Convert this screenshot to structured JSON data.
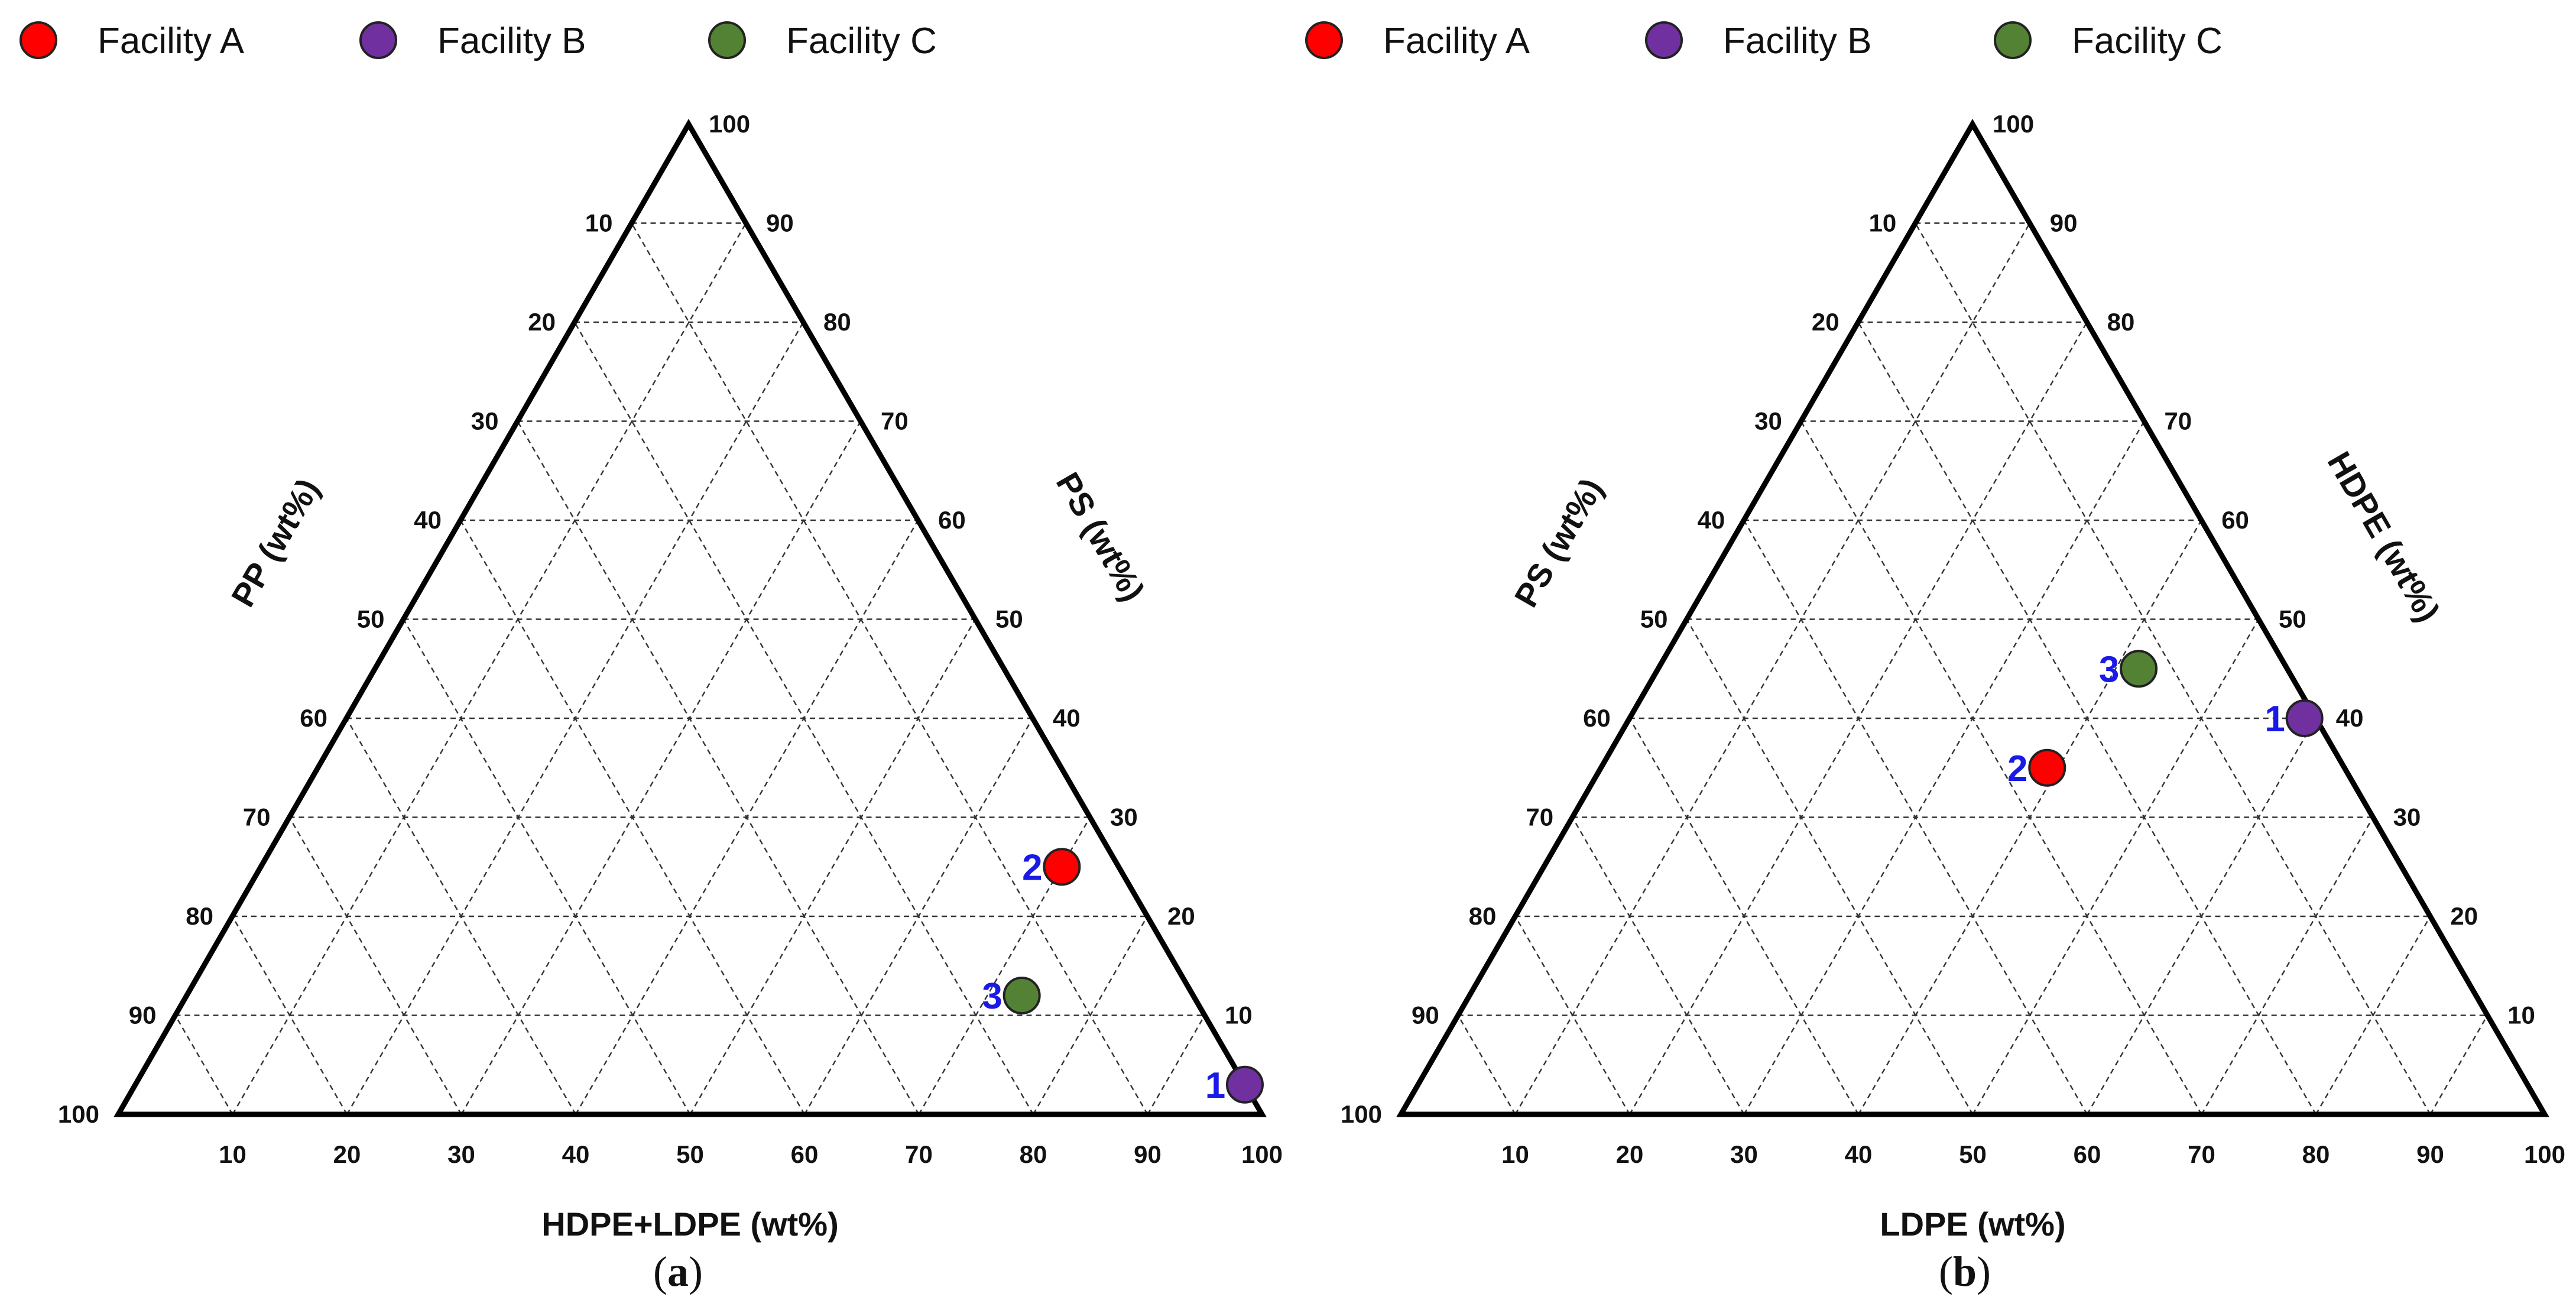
{
  "legend": [
    {
      "label": "Facility A",
      "color": "#ff0000"
    },
    {
      "label": "Facility B",
      "color": "#7030a0"
    },
    {
      "label": "Facility C",
      "color": "#548235"
    }
  ],
  "chart_data": [
    {
      "type": "ternary-scatter",
      "panel_label": "a",
      "axes": {
        "bottom": "HDPE+LDPE (wt%)",
        "left": "PP (wt%)",
        "right": "PS (wt%)"
      },
      "components": [
        "HDPE+LDPE",
        "PP",
        "PS"
      ],
      "range": [
        0,
        100
      ],
      "ticks": [
        10,
        20,
        30,
        40,
        50,
        60,
        70,
        80,
        90,
        100
      ],
      "points": [
        {
          "label": "1",
          "facility": "Facility B",
          "HDPE+LDPE": 97,
          "PP": 0,
          "PS": 3
        },
        {
          "label": "2",
          "facility": "Facility A",
          "HDPE+LDPE": 70,
          "PP": 5,
          "PS": 25
        },
        {
          "label": "3",
          "facility": "Facility C",
          "HDPE+LDPE": 73,
          "PP": 15,
          "PS": 12
        }
      ]
    },
    {
      "type": "ternary-scatter",
      "panel_label": "b",
      "axes": {
        "bottom": "LDPE (wt%)",
        "left": "PS (wt%)",
        "right": "HDPE (wt%)"
      },
      "components": [
        "LDPE",
        "PS",
        "HDPE"
      ],
      "range": [
        0,
        100
      ],
      "ticks": [
        10,
        20,
        30,
        40,
        50,
        60,
        70,
        80,
        90,
        100
      ],
      "points": [
        {
          "label": "1",
          "facility": "Facility B",
          "LDPE": 59,
          "PS": 1,
          "HDPE": 40
        },
        {
          "label": "2",
          "facility": "Facility A",
          "LDPE": 39,
          "PS": 26,
          "HDPE": 35
        },
        {
          "label": "3",
          "facility": "Facility C",
          "LDPE": 42,
          "PS": 13,
          "HDPE": 45
        }
      ]
    }
  ]
}
